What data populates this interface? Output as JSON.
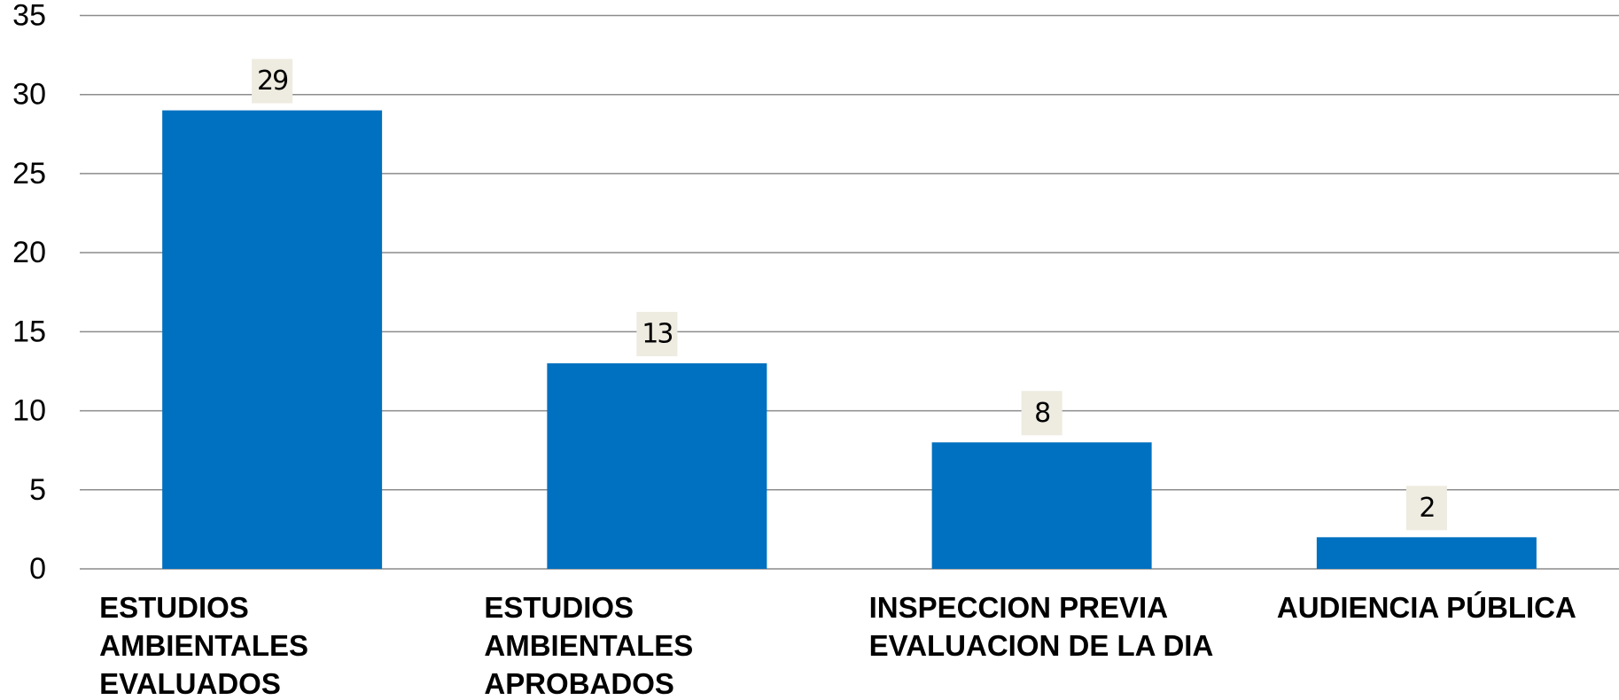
{
  "chart_data": {
    "type": "bar",
    "categories": [
      "ESTUDIOS AMBIENTALES EVALUADOS",
      "ESTUDIOS AMBIENTALES APROBADOS",
      "INSPECCION PREVIA EVALUACION  DE LA DIA",
      "AUDIENCIA PÚBLICA"
    ],
    "values": [
      29,
      13,
      8,
      2
    ],
    "color": "#0070c0",
    "ylim": [
      0,
      35
    ],
    "yticks": [
      0,
      5,
      10,
      15,
      20,
      25,
      30,
      35
    ],
    "grid": true
  }
}
